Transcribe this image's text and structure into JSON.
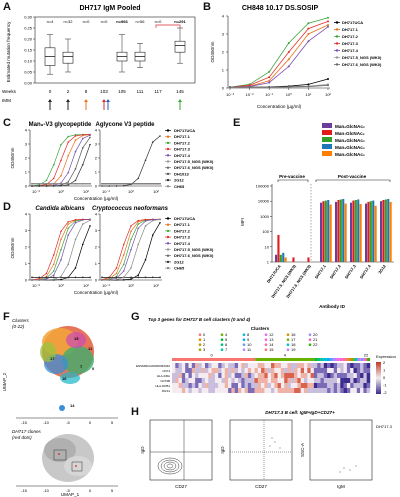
{
  "panel_labels": [
    "A",
    "B",
    "C",
    "D",
    "E",
    "F",
    "G",
    "H"
  ],
  "panelA": {
    "title": "DH717 IgM Pooled",
    "ylabel": "Estimated mutation frequency",
    "yticks": [
      "0.00",
      "0.05",
      "0.10",
      "0.15",
      "0.20",
      "0.25",
      "0.30"
    ],
    "n_labels": [
      "n=4",
      "n=32",
      "n=0",
      "n=0",
      "n=966",
      "n=56",
      "n=0",
      "n=291"
    ],
    "weeks_label": "Weeks",
    "imm_label": "IMM",
    "weeks": [
      "0",
      "2",
      "8",
      "103",
      "105",
      "111",
      "117",
      "145"
    ],
    "chart_data": {
      "type": "box",
      "categories": [
        "0",
        "2",
        "8",
        "103",
        "105",
        "111",
        "117",
        "145"
      ],
      "series": [
        {
          "q1": 0.08,
          "median": 0.12,
          "q3": 0.16,
          "low": 0.04,
          "high": 0.22
        },
        {
          "q1": 0.09,
          "median": 0.12,
          "q3": 0.14,
          "low": 0.05,
          "high": 0.2
        },
        null,
        null,
        {
          "q1": 0.1,
          "median": 0.12,
          "q3": 0.14,
          "low": 0.05,
          "high": 0.22
        },
        {
          "q1": 0.1,
          "median": 0.12,
          "q3": 0.14,
          "low": 0.07,
          "high": 0.18
        },
        null,
        {
          "q1": 0.14,
          "median": 0.17,
          "q3": 0.19,
          "low": 0.09,
          "high": 0.25
        }
      ],
      "ylim": [
        0,
        0.3
      ]
    }
  },
  "panelB": {
    "title": "CH848 10.17 DS.SOSIP",
    "ylabel": "OD450nm",
    "xlabel": "Concentration (μg/ml)",
    "yticks": [
      "0",
      "1",
      "2",
      "3",
      "4"
    ],
    "xticks": [
      "10⁻³",
      "10⁻²",
      "10⁻¹",
      "10⁰",
      "10¹",
      "10²"
    ],
    "legend": [
      "DH717UCA",
      "DH717.1",
      "DH717.2",
      "DH717.3",
      "DH717.4",
      "DH717.5_NGS (WK0)",
      "DH717.6_NGS (WK0)"
    ],
    "colors": [
      "#000000",
      "#e8731c",
      "#3da63a",
      "#e0302b",
      "#7b4fb0",
      "#9a9a9a",
      "#6a6a6a"
    ],
    "chart_data": {
      "type": "line",
      "x": [
        0.001,
        0.01,
        0.1,
        1,
        10,
        100
      ],
      "series": [
        {
          "name": "DH717UCA",
          "values": [
            0.05,
            0.05,
            0.06,
            0.1,
            0.2,
            0.5
          ]
        },
        {
          "name": "DH717.1",
          "values": [
            0.05,
            0.1,
            0.4,
            1.6,
            3.0,
            3.5
          ]
        },
        {
          "name": "DH717.2",
          "values": [
            0.05,
            0.2,
            0.9,
            2.5,
            3.6,
            3.9
          ]
        },
        {
          "name": "DH717.3",
          "values": [
            0.05,
            0.15,
            0.6,
            2.0,
            3.3,
            3.7
          ]
        },
        {
          "name": "DH717.4",
          "values": [
            0.05,
            0.08,
            0.3,
            1.2,
            2.6,
            3.4
          ]
        },
        {
          "name": "DH717.5_NGS (WK0)",
          "values": [
            0.05,
            0.05,
            0.05,
            0.07,
            0.1,
            0.2
          ]
        },
        {
          "name": "DH717.6_NGS (WK0)",
          "values": [
            0.05,
            0.05,
            0.05,
            0.06,
            0.08,
            0.15
          ]
        }
      ],
      "ylim": [
        0,
        4
      ]
    }
  },
  "panelC": {
    "title_left": "Man₉-V3 glycopeptide",
    "title_right": "Aglycone V3 peptide",
    "ylabel": "OD450nm",
    "xlabel": "Concentration (μg/ml)",
    "yticks": [
      "0",
      "1",
      "2",
      "3",
      "4"
    ],
    "xticks": [
      "10⁻²",
      "10⁰",
      "10²"
    ],
    "legend": [
      "DH717UCA",
      "DH717.1",
      "DH717.2",
      "DH717.3",
      "DH717.4",
      "DH717.5_NGS (WK0)",
      "DH717.6_NGS (WK0)",
      "DH1013",
      "2G12",
      "CH65"
    ],
    "colors": [
      "#000000",
      "#e8731c",
      "#3da63a",
      "#e0302b",
      "#7b4fb0",
      "#9a9a9a",
      "#6a6a6a",
      "#555555",
      "#333333",
      "#888888"
    ]
  },
  "panelD": {
    "title_left": "Candida albicans",
    "title_right": "Cryptococcus neoformans",
    "ylabel": "OD450nm",
    "xlabel": "Concentration (μg/ml)",
    "yticks": [
      "0",
      "1",
      "2",
      "3",
      "4"
    ],
    "xticks": [
      "10⁻²",
      "10⁰",
      "10²"
    ],
    "legend": [
      "DH717UCA",
      "DH717.1",
      "DH717.2",
      "DH717.3",
      "DH717.4",
      "DH717.5_NGS (WK0)",
      "DH717.6_NGS (WK0)",
      "2G12",
      "CH65"
    ],
    "colors": [
      "#000000",
      "#e8731c",
      "#3da63a",
      "#e0302b",
      "#7b4fb0",
      "#9a9a9a",
      "#6a6a6a",
      "#333333",
      "#888888"
    ]
  },
  "panelE": {
    "legend": [
      "Man₆GlcNAc₂",
      "Man₇GlcNAc₂",
      "Man₈GlcNAc₂",
      "Man₉GlcNAc₂",
      "Man₅GlcNAc₂"
    ],
    "legend_colors": [
      "#6a3d9a",
      "#e31a1c",
      "#33a02c",
      "#1f78b4",
      "#ff7f00"
    ],
    "pre_label": "Pre-vaccine",
    "post_label": "Post-vaccine",
    "ylabel": "MFI",
    "yticks": [
      "100000",
      "10000",
      "1000",
      "100",
      "10",
      "1"
    ],
    "xlabel": "Antibody ID",
    "categories": [
      "DH717UCA",
      "DH717.5_NGS (WK0)",
      "DH717.6_NGS (WK0)",
      "DH717.1",
      "DH717.2",
      "DH717.3",
      "DH717.4",
      "2G12"
    ],
    "chart_data": {
      "type": "bar",
      "categories": [
        "DH717UCA",
        "DH717.5_NGS (WK0)",
        "DH717.6_NGS (WK0)",
        "DH717.1",
        "DH717.2",
        "DH717.3",
        "DH717.4",
        "2G12"
      ],
      "series": [
        {
          "name": "Man₆GlcNAc₂",
          "values": [
            3,
            1,
            1,
            8000,
            9000,
            8000,
            7000,
            10000
          ]
        },
        {
          "name": "Man₇GlcNAc₂",
          "values": [
            60,
            2,
            2,
            10000,
            12000,
            11000,
            9000,
            12000
          ]
        },
        {
          "name": "Man₈GlcNAc₂",
          "values": [
            3,
            1,
            1,
            11000,
            13000,
            12000,
            10000,
            13000
          ]
        },
        {
          "name": "Man₉GlcNAc₂",
          "values": [
            4,
            1,
            1,
            12000,
            14000,
            13000,
            11000,
            14000
          ]
        },
        {
          "name": "Man₅GlcNAc₂",
          "values": [
            2,
            1,
            1,
            6000,
            7000,
            6500,
            5000,
            9000
          ]
        }
      ],
      "ylim": [
        1,
        100000
      ],
      "yscale": "log"
    }
  },
  "panelF": {
    "top_title": "Clusters",
    "top_subtitle": "(0-22)",
    "bottom_title": "DH717 clones",
    "bottom_subtitle": "(red dots)",
    "ylabel": "UMAP_2",
    "xlabel": "UMAP_1",
    "xticks": [
      "-15",
      "-10",
      "-5",
      "0",
      "5"
    ],
    "yticks": [
      "10",
      "5",
      "0",
      "-5",
      "-10"
    ],
    "cluster_labels": [
      "15",
      "11",
      "17",
      "7",
      "16",
      "0",
      "14"
    ]
  },
  "panelG": {
    "title": "Top 3 genes for DH717 B cell clusters (0 and 4)",
    "clusters_label": "Clusters",
    "cluster_ids": [
      "0",
      "1",
      "2",
      "3",
      "4",
      "5",
      "6",
      "7",
      "8",
      "9",
      "10",
      "11",
      "12",
      "13",
      "14",
      "15",
      "16",
      "17",
      "18",
      "19",
      "20",
      "21",
      "22"
    ],
    "cluster_colors": [
      "#f8766d",
      "#e58700",
      "#c99800",
      "#a3a500",
      "#6bb100",
      "#00ba38",
      "#00bf7d",
      "#00c0af",
      "#00bcd8",
      "#00b0f6",
      "#619cff",
      "#b983ff",
      "#e76bf3",
      "#fd61d1",
      "#ff67a4",
      "#f8766d",
      "#d89000",
      "#7cae00",
      "#00bfc4",
      "#c77cff",
      "#9590ff",
      "#ff62bc",
      "#39b600"
    ],
    "header_ticks": [
      "0",
      "4",
      "22"
    ],
    "expression_label": "Expression",
    "scale_ticks": [
      "2",
      "1",
      "0",
      "-1",
      "-2"
    ],
    "genes": [
      "ENSMMUG00000062040",
      "CD74",
      "HLA-DRA",
      "CD79B",
      "HLA-DPB1",
      "RGS1"
    ]
  },
  "panelH": {
    "title": "DH717.3 B cell: IgM+IgD+CD27+",
    "p1_xlabel": "CD27",
    "p1_ylabel": "IgD",
    "p2_xlabel": "CD27",
    "p2_ylabel": "IgD",
    "p3_xlabel": "IgM",
    "p3_ylabel": "SSC-A",
    "legend_label": "DH717.3"
  }
}
